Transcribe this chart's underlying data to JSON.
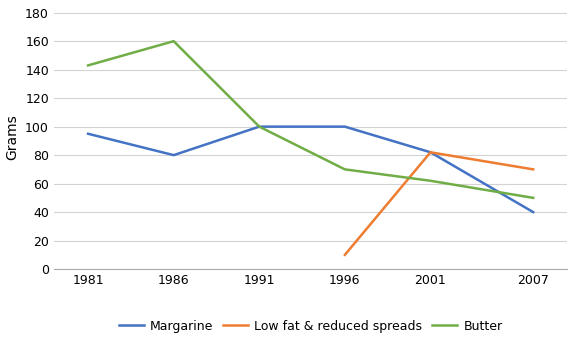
{
  "years": [
    1981,
    1986,
    1991,
    1996,
    2001,
    2007
  ],
  "margarine": [
    95,
    80,
    100,
    100,
    82,
    40
  ],
  "low_fat_years": [
    1996,
    2001,
    2007
  ],
  "low_fat": [
    10,
    82,
    70
  ],
  "butter": [
    143,
    160,
    100,
    70,
    62,
    50
  ],
  "margarine_color": "#4472C4",
  "low_fat_color": "#ED7D31",
  "butter_color": "#70AD47",
  "ylabel": "Grams",
  "ylim": [
    0,
    185
  ],
  "yticks": [
    0,
    20,
    40,
    60,
    80,
    100,
    120,
    140,
    160,
    180
  ],
  "legend_labels": [
    "Margarine",
    "Low fat & reduced spreads",
    "Butter"
  ],
  "background_color": "#FFFFFF",
  "grid_color": "#D3D3D3",
  "linewidth": 1.8,
  "tick_fontsize": 9,
  "ylabel_fontsize": 10,
  "legend_fontsize": 9,
  "xlim_left": 1979,
  "xlim_right": 2009
}
